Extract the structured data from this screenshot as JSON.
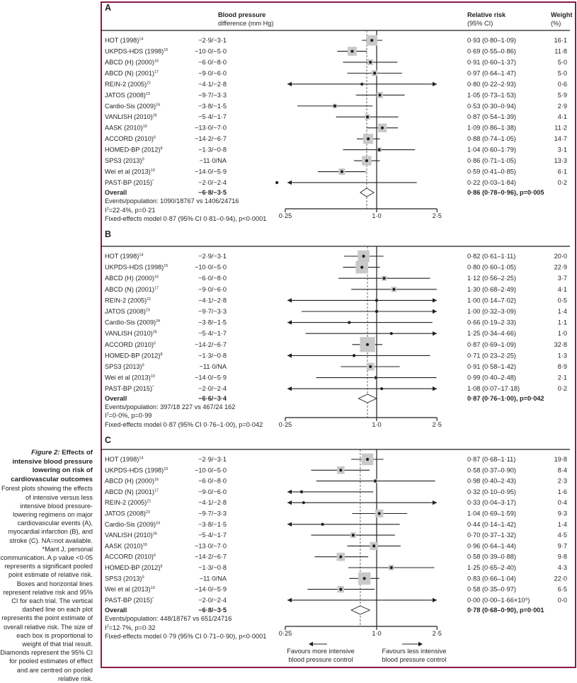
{
  "figure_caption": {
    "label": "Figure 2:",
    "title": " Effects of intensive blood pressure lowering on risk of cardiovascular outcomes",
    "body": "Forest plots showing the effects of intensive versus less intensive blood pressure-lowering regimens on major cardiovascular events (A), myocardial infarction (B), and stroke (C). NA=not available. *Mant J, personal communication. A p value <0·05 represents a significant pooled point estimate of relative risk. Boxes and horizontal lines represent relative risk and 95% CI for each trial. The vertical dashed line on each plot represents the point estimate of overall relative risk. The size of each box is proportional to weight of that trial result. Diamonds represent the 95% CI for pooled estimates of effect and are centred on pooled relative risk."
  },
  "colors": {
    "frame": "#8b1a4a",
    "box": "#c7c9ca",
    "ink": "#231f20"
  },
  "chart_data": [
    {
      "type": "forest",
      "panel": "A",
      "header": {
        "bp_line1": "Blood pressure",
        "bp_line2": "difference (mm Hg)",
        "rr_line1": "Relative risk",
        "rr_line2": "(95% CI)",
        "w_line1": "Weight",
        "w_line2": "(%)"
      },
      "xscale": "log",
      "xlim": [
        0.25,
        2.5
      ],
      "xticks": [
        {
          "value": 0.25,
          "label": "0·25"
        },
        {
          "value": 1.0,
          "label": "1·0"
        },
        {
          "value": 2.5,
          "label": "2·5"
        }
      ],
      "reference_line": 1.0,
      "pooled_line": 0.86,
      "studies": [
        {
          "name": "HOT (1998)",
          "ref": "14",
          "bp": "−2·9/−3·1",
          "rr": 0.93,
          "lo": 0.8,
          "hi": 1.09,
          "rr_text": "0·93 (0·80–1·09)",
          "weight": 16.1,
          "weight_text": "16·1"
        },
        {
          "name": "UKPDS-HDS (1998)",
          "ref": "15",
          "bp": "−10·0/−5·0",
          "rr": 0.69,
          "lo": 0.55,
          "hi": 0.86,
          "rr_text": "0·69 (0·55–0·86)",
          "weight": 11.8,
          "weight_text": "11·8"
        },
        {
          "name": "ABCD (H) (2000)",
          "ref": "16",
          "bp": "−6·0/−8·0",
          "rr": 0.91,
          "lo": 0.6,
          "hi": 1.37,
          "rr_text": "0·91 (0·60–1·37)",
          "weight": 5.0,
          "weight_text": "5·0"
        },
        {
          "name": "ABCD (N) (2001)",
          "ref": "17",
          "bp": "−9·0/−6·0",
          "rr": 0.97,
          "lo": 0.64,
          "hi": 1.47,
          "rr_text": "0·97 (0·64–1·47)",
          "weight": 5.0,
          "weight_text": "5·0"
        },
        {
          "name": "REIN-2 (2005)",
          "ref": "21",
          "bp": "−4·1/−2·8",
          "rr": 0.8,
          "lo": 0.22,
          "hi": 2.93,
          "rr_text": "0·80 (0·22–2·93)",
          "weight": 0.6,
          "weight_text": "0·6"
        },
        {
          "name": "JATOS (2008)",
          "ref": "23",
          "bp": "−9·7/−3·3",
          "rr": 1.05,
          "lo": 0.73,
          "hi": 1.53,
          "rr_text": "1·05 (0·73–1·53)",
          "weight": 5.9,
          "weight_text": "5·9"
        },
        {
          "name": "Cardio-Sis (2009)",
          "ref": "24",
          "bp": "−3·8/−1·5",
          "rr": 0.53,
          "lo": 0.3,
          "hi": 0.94,
          "rr_text": "0·53 (0·30–0·94)",
          "weight": 2.9,
          "weight_text": "2·9"
        },
        {
          "name": "VANLISH (2010)",
          "ref": "26",
          "bp": "−5·4/−1·7",
          "rr": 0.87,
          "lo": 0.54,
          "hi": 1.39,
          "rr_text": "0·87 (0·54–1·39)",
          "weight": 4.1,
          "weight_text": "4·1"
        },
        {
          "name": "AASK (2010)",
          "ref": "19",
          "bp": "−13·0/−7·0",
          "rr": 1.09,
          "lo": 0.86,
          "hi": 1.38,
          "rr_text": "1·09 (0·86–1·38)",
          "weight": 11.2,
          "weight_text": "11·2"
        },
        {
          "name": "ACCORD (2010)",
          "ref": "6",
          "bp": "−14·2/−6·7",
          "rr": 0.88,
          "lo": 0.74,
          "hi": 1.05,
          "rr_text": "0·88 (0·74–1·05)",
          "weight": 14.7,
          "weight_text": "14·7"
        },
        {
          "name": "HOMED-BP (2012)",
          "ref": "8",
          "bp": "−1·3/−0·8",
          "rr": 1.04,
          "lo": 0.6,
          "hi": 1.79,
          "rr_text": "1·04 (0·60–1·79)",
          "weight": 3.1,
          "weight_text": "3·1"
        },
        {
          "name": "SPS3 (2013)",
          "ref": "9",
          "bp": "−11·0/NA",
          "rr": 0.86,
          "lo": 0.71,
          "hi": 1.05,
          "rr_text": "0·86 (0·71–1·05)",
          "weight": 13.3,
          "weight_text": "13·3"
        },
        {
          "name": "Wei et al (2013)",
          "ref": "10",
          "bp": "−14·0/−5·9",
          "rr": 0.59,
          "lo": 0.41,
          "hi": 0.85,
          "rr_text": "0·59 (0·41–0·85)",
          "weight": 6.1,
          "weight_text": "6·1"
        },
        {
          "name": "PAST-BP (2015)",
          "ref": "*",
          "bp": "−2·0/−2·4",
          "rr": 0.22,
          "lo": 0.03,
          "hi": 1.84,
          "rr_text": "0·22 (0·03–1·84)",
          "weight": 0.2,
          "weight_text": "0·2"
        }
      ],
      "overall": {
        "name": "Overall",
        "bp": "−6·8/−3·5",
        "rr": 0.86,
        "lo": 0.78,
        "hi": 0.96,
        "rr_text": "0·86 (0·78–0·96), p=0·005"
      },
      "events": "Events/population: 1090/18767 vs 1406/24716",
      "i2_label": "I",
      "i2": "=22·4%, p=0·21",
      "fixed": "Fixed-effects model 0·87 (95% CI 0·81–0·94), p<0·0001"
    },
    {
      "type": "forest",
      "panel": "B",
      "xscale": "log",
      "xlim": [
        0.25,
        2.5
      ],
      "xticks": [
        {
          "value": 0.25,
          "label": "0·25"
        },
        {
          "value": 1.0,
          "label": "1·0"
        },
        {
          "value": 2.5,
          "label": "2·5"
        }
      ],
      "reference_line": 1.0,
      "pooled_line": 0.87,
      "studies": [
        {
          "name": "HOT (1998)",
          "ref": "14",
          "bp": "−2·9/−3·1",
          "rr": 0.82,
          "lo": 0.61,
          "hi": 1.11,
          "rr_text": "0·82 (0·61–1·11)",
          "weight": 20.0,
          "weight_text": "20·0"
        },
        {
          "name": "UKPDS-HDS (1998)",
          "ref": "15",
          "bp": "−10·0/−5·0",
          "rr": 0.8,
          "lo": 0.6,
          "hi": 1.05,
          "rr_text": "0·80 (0·60–1·05)",
          "weight": 22.9,
          "weight_text": "22·9"
        },
        {
          "name": "ABCD (H) (2000)",
          "ref": "16",
          "bp": "−6·0/−8·0",
          "rr": 1.12,
          "lo": 0.56,
          "hi": 2.25,
          "rr_text": "1·12 (0·56–2·25)",
          "weight": 3.7,
          "weight_text": "3·7"
        },
        {
          "name": "ABCD (N) (2001)",
          "ref": "17",
          "bp": "−9·0/−6·0",
          "rr": 1.3,
          "lo": 0.68,
          "hi": 2.49,
          "rr_text": "1·30 (0·68–2·49)",
          "weight": 4.1,
          "weight_text": "4·1"
        },
        {
          "name": "REIN-2 (2005)",
          "ref": "21",
          "bp": "−4·1/−2·8",
          "rr": 1.0,
          "lo": 0.14,
          "hi": 7.02,
          "rr_text": "1·00 (0·14–7·02)",
          "weight": 0.5,
          "weight_text": "0·5"
        },
        {
          "name": "JATOS (2008)",
          "ref": "23",
          "bp": "−9·7/−3·3",
          "rr": 1.0,
          "lo": 0.32,
          "hi": 3.09,
          "rr_text": "1·00 (0·32–3·09)",
          "weight": 1.4,
          "weight_text": "1·4"
        },
        {
          "name": "Cardio-Sis (2009)",
          "ref": "24",
          "bp": "−3·8/−1·5",
          "rr": 0.66,
          "lo": 0.19,
          "hi": 2.33,
          "rr_text": "0·66 (0·19–2·33)",
          "weight": 1.1,
          "weight_text": "1·1"
        },
        {
          "name": "VANLISH (2010)",
          "ref": "26",
          "bp": "−5·4/−1·7",
          "rr": 1.25,
          "lo": 0.34,
          "hi": 4.66,
          "rr_text": "1·25 (0·34–4·66)",
          "weight": 1.0,
          "weight_text": "1·0"
        },
        {
          "name": "ACCORD (2010)",
          "ref": "6",
          "bp": "−14·2/−6·7",
          "rr": 0.87,
          "lo": 0.69,
          "hi": 1.09,
          "rr_text": "0·87 (0·69–1·09)",
          "weight": 32.8,
          "weight_text": "32·8"
        },
        {
          "name": "HOMED-BP (2012)",
          "ref": "8",
          "bp": "−1·3/−0·8",
          "rr": 0.71,
          "lo": 0.23,
          "hi": 2.25,
          "rr_text": "0·71 (0·23–2·25)",
          "weight": 1.3,
          "weight_text": "1·3"
        },
        {
          "name": "SPS3 (2013)",
          "ref": "9",
          "bp": "−11·0/NA",
          "rr": 0.91,
          "lo": 0.58,
          "hi": 1.42,
          "rr_text": "0·91 (0·58–1·42)",
          "weight": 8.9,
          "weight_text": "8·9"
        },
        {
          "name": "Wei et al (2013)",
          "ref": "10",
          "bp": "−14·0/−5·9",
          "rr": 0.99,
          "lo": 0.4,
          "hi": 2.48,
          "rr_text": "0·99 (0·40–2·48)",
          "weight": 2.1,
          "weight_text": "2·1"
        },
        {
          "name": "PAST-BP (2015)",
          "ref": "*",
          "bp": "−2·0/−2·4",
          "rr": 1.08,
          "lo": 0.07,
          "hi": 17.18,
          "rr_text": "1·08 (0·07–17·18)",
          "weight": 0.2,
          "weight_text": "0·2"
        }
      ],
      "overall": {
        "name": "Overall",
        "bp": "−6·6/−3·4",
        "rr": 0.87,
        "lo": 0.76,
        "hi": 1.0,
        "rr_text": "0·87 (0·76–1·00), p=0·042"
      },
      "events": "Events/population: 397/18 227 vs 467/24 162",
      "i2_label": "I",
      "i2": "=0·0%, p=0·99",
      "fixed": "Fixed-effects model 0·87 (95% CI 0·76–1·00), p=0·042"
    },
    {
      "type": "forest",
      "panel": "C",
      "xscale": "log",
      "xlim": [
        0.25,
        2.5
      ],
      "xticks": [
        {
          "value": 0.25,
          "label": "0·25"
        },
        {
          "value": 1.0,
          "label": "1·0"
        },
        {
          "value": 2.5,
          "label": "2·5"
        }
      ],
      "reference_line": 1.0,
      "pooled_line": 0.78,
      "studies": [
        {
          "name": "HOT (1998)",
          "ref": "14",
          "bp": "−2·9/−3·1",
          "rr": 0.87,
          "lo": 0.68,
          "hi": 1.11,
          "rr_text": "0·87 (0·68–1·11)",
          "weight": 19.8,
          "weight_text": "19·8"
        },
        {
          "name": "UKPDS-HDS (1998)",
          "ref": "15",
          "bp": "−10·0/−5·0",
          "rr": 0.58,
          "lo": 0.37,
          "hi": 0.9,
          "rr_text": "0·58 (0·37–0·90)",
          "weight": 8.4,
          "weight_text": "8·4"
        },
        {
          "name": "ABCD (H) (2000)",
          "ref": "16",
          "bp": "−6·0/−8·0",
          "rr": 0.98,
          "lo": 0.4,
          "hi": 2.43,
          "rr_text": "0·98 (0·40–2·43)",
          "weight": 2.3,
          "weight_text": "2·3"
        },
        {
          "name": "ABCD (N) (2001)",
          "ref": "17",
          "bp": "−9·0/−6·0",
          "rr": 0.32,
          "lo": 0.1,
          "hi": 0.95,
          "rr_text": "0·32 (0·10–0·95)",
          "weight": 1.6,
          "weight_text": "1·6"
        },
        {
          "name": "REIN-2 (2005)",
          "ref": "21",
          "bp": "−4·1/−2·8",
          "rr": 0.33,
          "lo": 0.04,
          "hi": 3.17,
          "rr_text": "0·33 (0·04–3·17)",
          "weight": 0.4,
          "weight_text": "0·4"
        },
        {
          "name": "JATOS (2008)",
          "ref": "23",
          "bp": "−9·7/−3·3",
          "rr": 1.04,
          "lo": 0.69,
          "hi": 1.59,
          "rr_text": "1·04 (0·69–1·59)",
          "weight": 9.3,
          "weight_text": "9·3"
        },
        {
          "name": "Cardio-Sis (2009)",
          "ref": "24",
          "bp": "−3·8/−1·5",
          "rr": 0.44,
          "lo": 0.14,
          "hi": 1.42,
          "rr_text": "0·44 (0·14–1·42)",
          "weight": 1.4,
          "weight_text": "1·4"
        },
        {
          "name": "VANLISH (2010)",
          "ref": "26",
          "bp": "−5·4/−1·7",
          "rr": 0.7,
          "lo": 0.37,
          "hi": 1.32,
          "rr_text": "0·70 (0·37–1·32)",
          "weight": 4.5,
          "weight_text": "4·5"
        },
        {
          "name": "AASK (2010)",
          "ref": "19",
          "bp": "−13·0/−7·0",
          "rr": 0.96,
          "lo": 0.64,
          "hi": 1.44,
          "rr_text": "0·96 (0·64–1·44)",
          "weight": 9.7,
          "weight_text": "9·7"
        },
        {
          "name": "ACCORD (2010)",
          "ref": "6",
          "bp": "−14·2/−6·7",
          "rr": 0.58,
          "lo": 0.39,
          "hi": 0.88,
          "rr_text": "0·58 (0·39–0·88)",
          "weight": 9.8,
          "weight_text": "9·8"
        },
        {
          "name": "HOMED-BP (2012)",
          "ref": "8",
          "bp": "−1·3/−0·8",
          "rr": 1.25,
          "lo": 0.65,
          "hi": 2.4,
          "rr_text": "1·25 (0·65–2·40)",
          "weight": 4.3,
          "weight_text": "4·3"
        },
        {
          "name": "SPS3 (2013)",
          "ref": "9",
          "bp": "−11·0/NA",
          "rr": 0.83,
          "lo": 0.66,
          "hi": 1.04,
          "rr_text": "0·83 (0·66–1·04)",
          "weight": 22.0,
          "weight_text": "22·0"
        },
        {
          "name": "Wei et al (2013)",
          "ref": "10",
          "bp": "−14·0/−5·9",
          "rr": 0.58,
          "lo": 0.35,
          "hi": 0.97,
          "rr_text": "0·58 (0·35–0·97)",
          "weight": 6.5,
          "weight_text": "6·5"
        },
        {
          "name": "PAST-BP (2015)",
          "ref": "*",
          "bp": "−2·0/−2·4",
          "rr": 0.0,
          "lo": 0.0,
          "hi": 1660000000,
          "rr_text": "0·00 (0·00–1·66×10⁹)",
          "weight": 0.0,
          "weight_text": "0·0"
        }
      ],
      "overall": {
        "name": "Overall",
        "bp": "−6·8/−3·5",
        "rr": 0.78,
        "lo": 0.68,
        "hi": 0.9,
        "rr_text": "0·78 (0·68–0·90), p=0·001"
      },
      "events": "Events/population: 448/18767 vs 651/24716",
      "i2_label": "I",
      "i2": "=12·7%, p=0·32",
      "fixed": "Fixed-effects model 0·79 (95% CI 0·71–0·90), p<0·0001",
      "favours_left_1": "Favours more intensive",
      "favours_left_2": "blood pressure control",
      "favours_right_1": "Favours less intensive",
      "favours_right_2": "blood pressure control"
    }
  ]
}
